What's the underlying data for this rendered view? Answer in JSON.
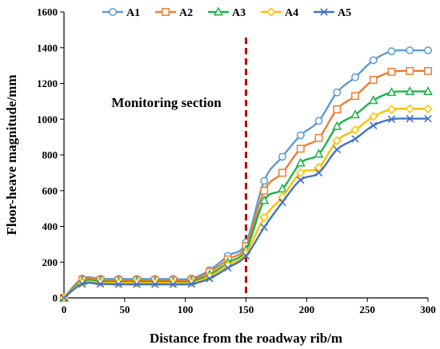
{
  "chart_data": {
    "type": "line",
    "title": "",
    "xlabel": "Distance from the roadway rib/m",
    "ylabel": "Floor-heave magnitude/mm",
    "xlim": [
      0,
      300
    ],
    "ylim": [
      0,
      1600
    ],
    "x_ticks": [
      "0",
      "50",
      "100",
      "150",
      "200",
      "250",
      "300"
    ],
    "y_ticks": [
      "0",
      "200",
      "400",
      "600",
      "800",
      "1000",
      "1200",
      "1400",
      "1600"
    ],
    "grid": false,
    "legend_position": "top",
    "annotation": {
      "text": "Monitoring section",
      "line_x": 150,
      "line_color": "#c00000"
    },
    "x": [
      0,
      15,
      30,
      45,
      60,
      75,
      90,
      105,
      120,
      135,
      150,
      165,
      180,
      195,
      210,
      225,
      240,
      255,
      270,
      285,
      300
    ],
    "series": [
      {
        "name": "A1",
        "color": "#5b9bd5",
        "marker": "circle",
        "values": [
          0,
          108,
          107,
          106,
          106,
          106,
          106,
          108,
          155,
          235,
          310,
          655,
          790,
          910,
          990,
          1150,
          1235,
          1330,
          1380,
          1385,
          1385
        ]
      },
      {
        "name": "A2",
        "color": "#ed7d31",
        "marker": "square",
        "values": [
          0,
          100,
          100,
          98,
          98,
          98,
          98,
          100,
          145,
          215,
          290,
          600,
          700,
          835,
          895,
          1055,
          1130,
          1220,
          1265,
          1270,
          1270
        ]
      },
      {
        "name": "A3",
        "color": "#1db24a",
        "marker": "triangle",
        "values": [
          0,
          92,
          92,
          90,
          90,
          90,
          90,
          92,
          130,
          198,
          270,
          545,
          610,
          755,
          805,
          960,
          1025,
          1105,
          1150,
          1155,
          1155
        ]
      },
      {
        "name": "A4",
        "color": "#ffc000",
        "marker": "diamond",
        "values": [
          0,
          85,
          85,
          84,
          84,
          84,
          84,
          85,
          120,
          182,
          250,
          450,
          565,
          700,
          730,
          880,
          940,
          1015,
          1055,
          1058,
          1058
        ]
      },
      {
        "name": "A5",
        "color": "#4472c4",
        "marker": "x",
        "values": [
          0,
          78,
          78,
          76,
          76,
          76,
          76,
          78,
          108,
          168,
          235,
          395,
          535,
          660,
          700,
          830,
          890,
          965,
          1000,
          1003,
          1003
        ]
      }
    ]
  }
}
